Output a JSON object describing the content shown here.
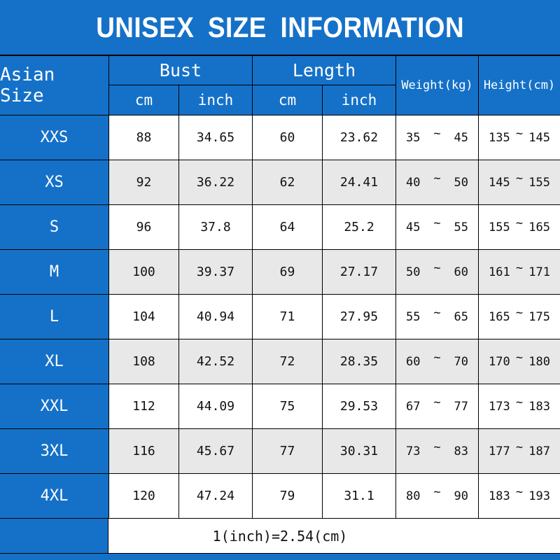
{
  "title": "UNISEX SIZE INFORMATION",
  "colors": {
    "blue": "#1571c8",
    "row": "#ffffff",
    "row-alt": "#e8e8e8",
    "border": "#000000"
  },
  "header": {
    "size_label": "Asian Size",
    "bust_label": "Bust",
    "length_label": "Length",
    "bust_cm_label": "cm",
    "bust_inch_label": "inch",
    "length_cm_label": "cm",
    "length_inch_label": "inch",
    "weight_label": "Weight(kg)",
    "height_label": "Height(cm)"
  },
  "footer": {
    "note": "1(inch)=2.54(cm)"
  },
  "chart_data": {
    "type": "table",
    "title": "UNISEX SIZE INFORMATION",
    "range_separator": "~",
    "columns": [
      "Asian Size",
      "Bust cm",
      "Bust inch",
      "Length cm",
      "Length inch",
      "Weight(kg)",
      "Height(cm)"
    ],
    "rows": [
      {
        "size": "XXS",
        "bust_cm": "88",
        "bust_inch": "34.65",
        "length_cm": "60",
        "length_inch": "23.62",
        "weight_min": "35",
        "weight_max": "45",
        "height_min": "135",
        "height_max": "145"
      },
      {
        "size": "XS",
        "bust_cm": "92",
        "bust_inch": "36.22",
        "length_cm": "62",
        "length_inch": "24.41",
        "weight_min": "40",
        "weight_max": "50",
        "height_min": "145",
        "height_max": "155"
      },
      {
        "size": "S",
        "bust_cm": "96",
        "bust_inch": "37.8",
        "length_cm": "64",
        "length_inch": "25.2",
        "weight_min": "45",
        "weight_max": "55",
        "height_min": "155",
        "height_max": "165"
      },
      {
        "size": "M",
        "bust_cm": "100",
        "bust_inch": "39.37",
        "length_cm": "69",
        "length_inch": "27.17",
        "weight_min": "50",
        "weight_max": "60",
        "height_min": "161",
        "height_max": "171"
      },
      {
        "size": "L",
        "bust_cm": "104",
        "bust_inch": "40.94",
        "length_cm": "71",
        "length_inch": "27.95",
        "weight_min": "55",
        "weight_max": "65",
        "height_min": "165",
        "height_max": "175"
      },
      {
        "size": "XL",
        "bust_cm": "108",
        "bust_inch": "42.52",
        "length_cm": "72",
        "length_inch": "28.35",
        "weight_min": "60",
        "weight_max": "70",
        "height_min": "170",
        "height_max": "180"
      },
      {
        "size": "XXL",
        "bust_cm": "112",
        "bust_inch": "44.09",
        "length_cm": "75",
        "length_inch": "29.53",
        "weight_min": "67",
        "weight_max": "77",
        "height_min": "173",
        "height_max": "183"
      },
      {
        "size": "3XL",
        "bust_cm": "116",
        "bust_inch": "45.67",
        "length_cm": "77",
        "length_inch": "30.31",
        "weight_min": "73",
        "weight_max": "83",
        "height_min": "177",
        "height_max": "187"
      },
      {
        "size": "4XL",
        "bust_cm": "120",
        "bust_inch": "47.24",
        "length_cm": "79",
        "length_inch": "31.1",
        "weight_min": "80",
        "weight_max": "90",
        "height_min": "183",
        "height_max": "193"
      }
    ],
    "footnote": "1(inch)=2.54(cm)"
  }
}
